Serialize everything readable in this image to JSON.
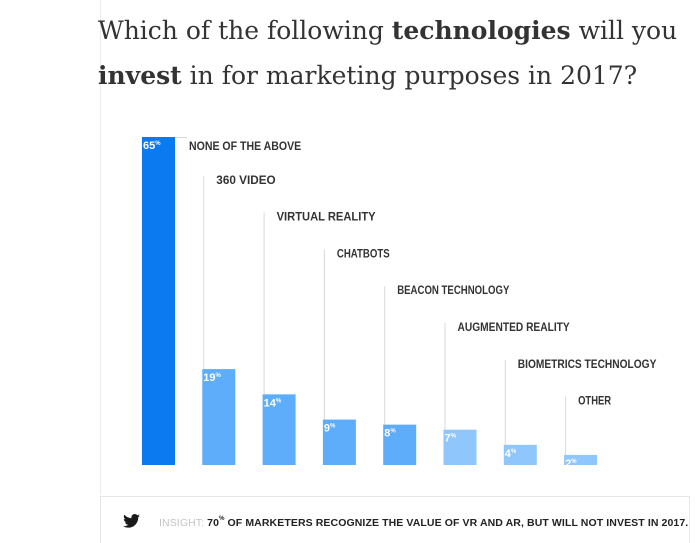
{
  "title": {
    "prefix": "Which of the following ",
    "bold1": "technologies",
    "middle": " will you",
    "bold2": "invest",
    "suffix": " in for marketing purposes in 2017?"
  },
  "chart_data": {
    "type": "bar",
    "categories": [
      "NONE OF THE ABOVE",
      "360 VIDEO",
      "VIRTUAL REALITY",
      "CHATBOTS",
      "BEACON TECHNOLOGY",
      "AUGMENTED REALITY",
      "BIOMETRICS TECHNOLOGY",
      "OTHER"
    ],
    "values": [
      65,
      19,
      14,
      9,
      8,
      7,
      4,
      2
    ],
    "value_suffix": "%",
    "ylim": [
      0,
      65
    ],
    "grid": false,
    "colors": {
      "highlight": "#0b7af0",
      "bar": "#5dadfa",
      "bar_light": "#8fc6fb",
      "leader": "#d9d9d9",
      "label": "#333333",
      "value_label": "#ffffff"
    }
  },
  "insight": {
    "label": "INSIGHT:",
    "value": "70",
    "unit": "%",
    "message": "OF MARKETERS RECOGNIZE THE VALUE OF VR AND AR, BUT WILL NOT INVEST IN 2017.",
    "icon": "twitter-bird-icon",
    "icon_color": "#1a1a1a"
  }
}
